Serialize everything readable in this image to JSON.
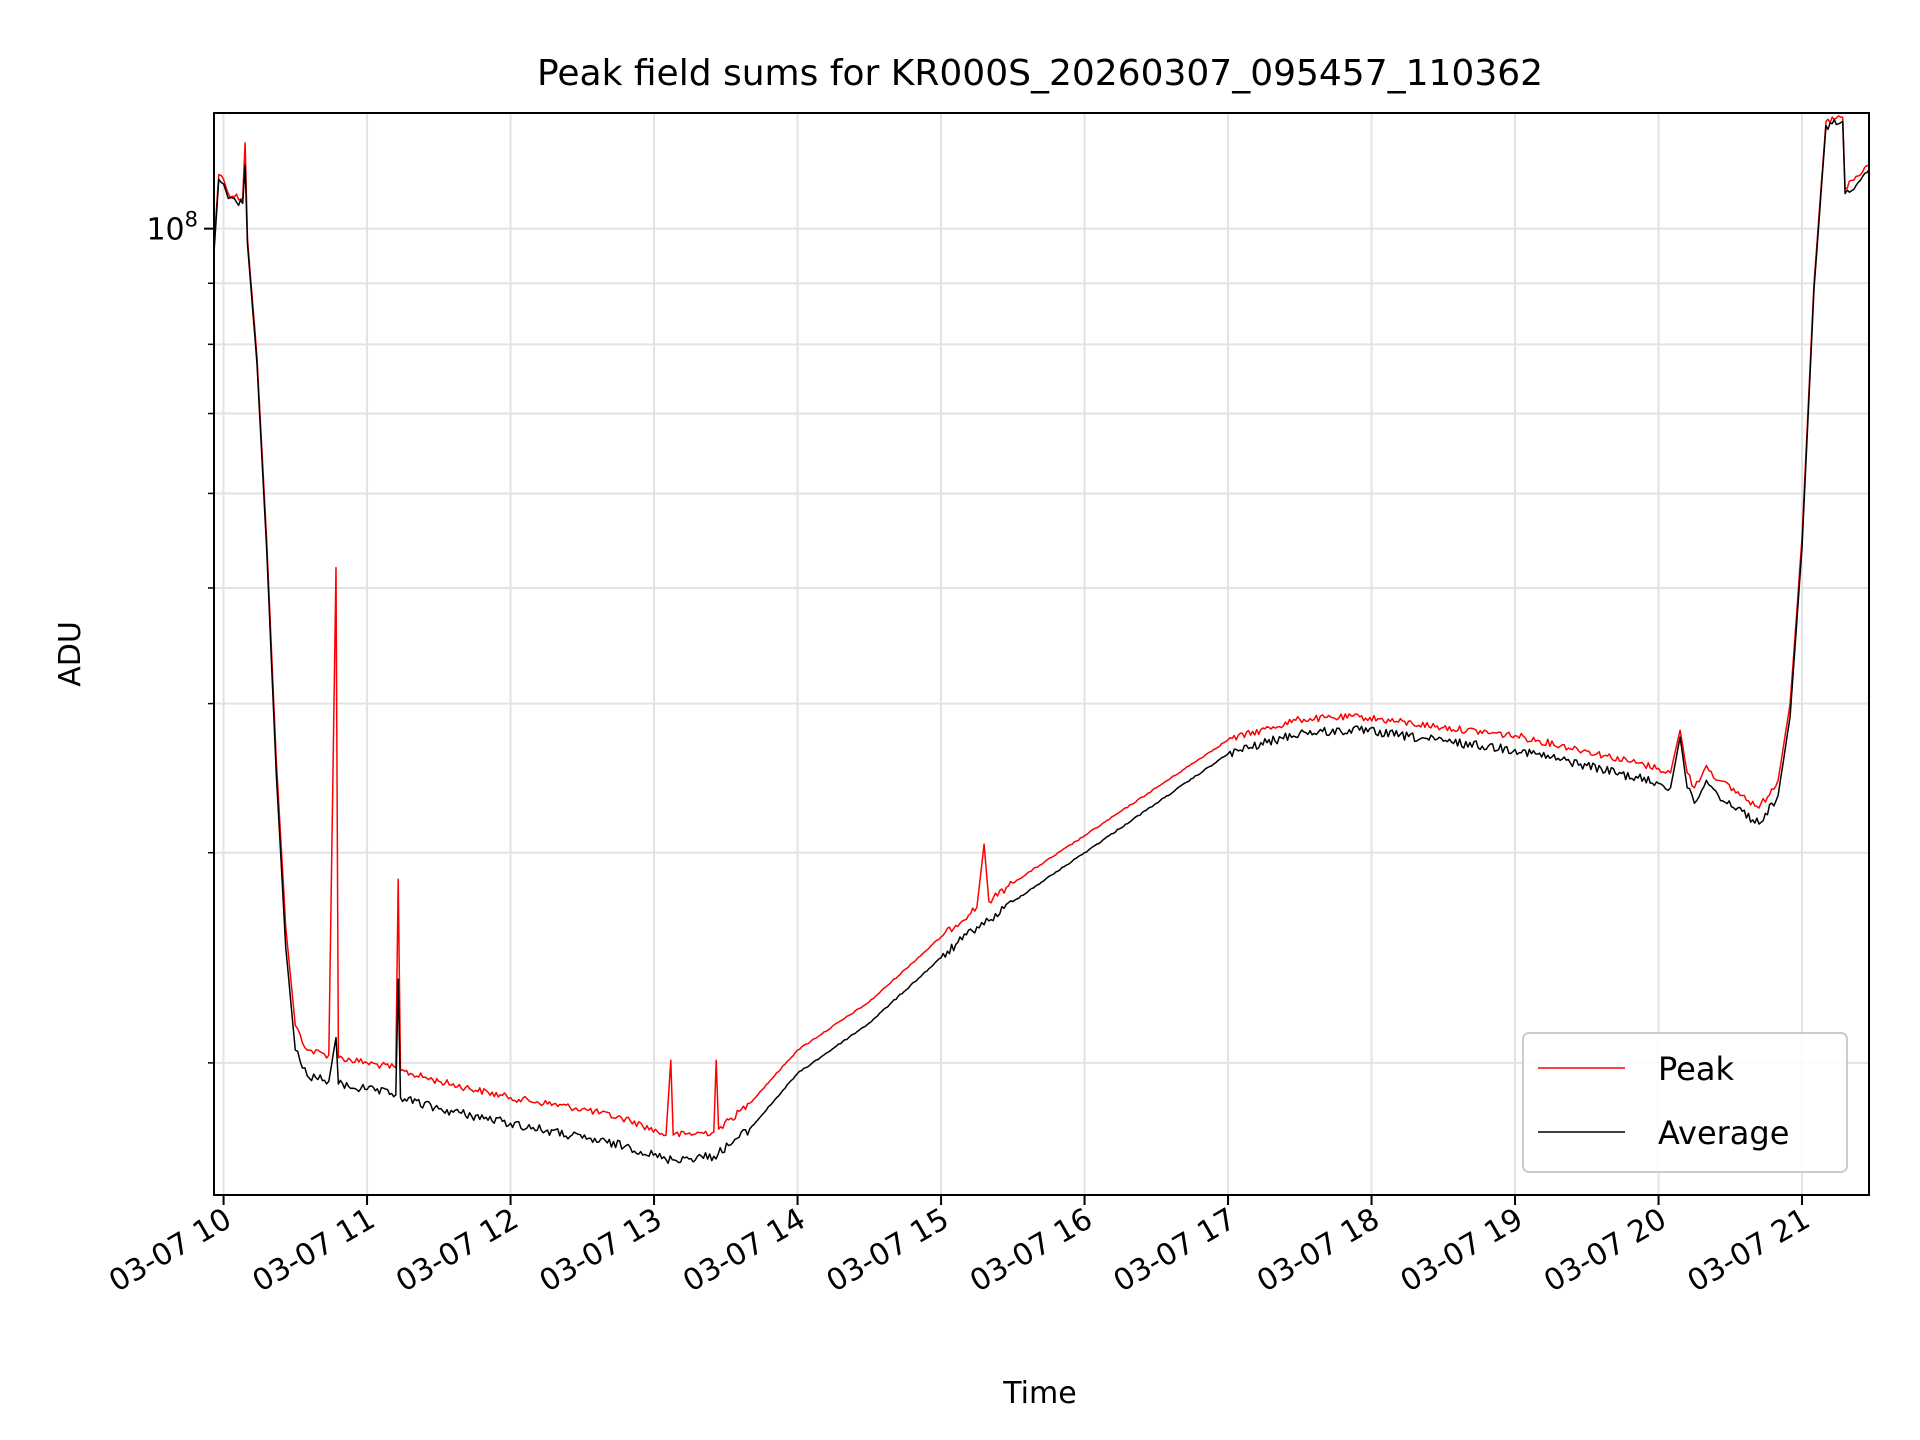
{
  "chart_data": {
    "type": "line",
    "title": "Peak field sums for KR000S_20260307_095457_110362",
    "xlabel": "Time",
    "ylabel": "ADU",
    "y_scale": "log",
    "y_tick_label": {
      "base": "10",
      "exponent": "8",
      "value": 100000000
    },
    "ylim": [
      15500000,
      125000000
    ],
    "xlim": [
      "2026-03-07 09:56",
      "2026-03-07 21:28"
    ],
    "x_tick_labels": [
      "03-07 10",
      "03-07 11",
      "03-07 12",
      "03-07 13",
      "03-07 14",
      "03-07 15",
      "03-07 16",
      "03-07 17",
      "03-07 18",
      "03-07 19",
      "03-07 20",
      "03-07 21"
    ],
    "x_ticks": [
      "2026-03-07 10:00",
      "2026-03-07 11:00",
      "2026-03-07 12:00",
      "2026-03-07 13:00",
      "2026-03-07 14:00",
      "2026-03-07 15:00",
      "2026-03-07 16:00",
      "2026-03-07 17:00",
      "2026-03-07 18:00",
      "2026-03-07 19:00",
      "2026-03-07 20:00",
      "2026-03-07 21:00"
    ],
    "grid": true,
    "legend": {
      "position": "lower-right"
    },
    "series": [
      {
        "name": "Peak",
        "color": "#ff0000",
        "points": [
          [
            "2026-03-07 09:56",
            97000000
          ],
          [
            "2026-03-07 09:58",
            111000000
          ],
          [
            "2026-03-07 10:00",
            110000000
          ],
          [
            "2026-03-07 10:02",
            107000000
          ],
          [
            "2026-03-07 10:08",
            106000000
          ],
          [
            "2026-03-07 10:09",
            118000000
          ],
          [
            "2026-03-07 10:10",
            98000000
          ],
          [
            "2026-03-07 10:14",
            78000000
          ],
          [
            "2026-03-07 10:18",
            55000000
          ],
          [
            "2026-03-07 10:22",
            36000000
          ],
          [
            "2026-03-07 10:26",
            26000000
          ],
          [
            "2026-03-07 10:30",
            21500000
          ],
          [
            "2026-03-07 10:35",
            20500000
          ],
          [
            "2026-03-07 10:44",
            20300000
          ],
          [
            "2026-03-07 10:47",
            52000000
          ],
          [
            "2026-03-07 10:48",
            20200000
          ],
          [
            "2026-03-07 11:00",
            20000000
          ],
          [
            "2026-03-07 11:12",
            19800000
          ],
          [
            "2026-03-07 11:13",
            28500000
          ],
          [
            "2026-03-07 11:14",
            19700000
          ],
          [
            "2026-03-07 11:30",
            19300000
          ],
          [
            "2026-03-07 12:00",
            18700000
          ],
          [
            "2026-03-07 12:30",
            18300000
          ],
          [
            "2026-03-07 12:50",
            17900000
          ],
          [
            "2026-03-07 13:05",
            17400000
          ],
          [
            "2026-03-07 13:07",
            20100000
          ],
          [
            "2026-03-07 13:08",
            17400000
          ],
          [
            "2026-03-07 13:25",
            17500000
          ],
          [
            "2026-03-07 13:26",
            20100000
          ],
          [
            "2026-03-07 13:27",
            17600000
          ],
          [
            "2026-03-07 13:40",
            18500000
          ],
          [
            "2026-03-07 14:00",
            20500000
          ],
          [
            "2026-03-07 14:30",
            22500000
          ],
          [
            "2026-03-07 15:00",
            25500000
          ],
          [
            "2026-03-07 15:15",
            27000000
          ],
          [
            "2026-03-07 15:18",
            30500000
          ],
          [
            "2026-03-07 15:20",
            27300000
          ],
          [
            "2026-03-07 15:30",
            28300000
          ],
          [
            "2026-03-07 16:00",
            31000000
          ],
          [
            "2026-03-07 16:30",
            34000000
          ],
          [
            "2026-03-07 17:00",
            37300000
          ],
          [
            "2026-03-07 17:30",
            38800000
          ],
          [
            "2026-03-07 17:55",
            39000000
          ],
          [
            "2026-03-07 18:30",
            38200000
          ],
          [
            "2026-03-07 19:00",
            37600000
          ],
          [
            "2026-03-07 19:30",
            36500000
          ],
          [
            "2026-03-07 20:00",
            35300000
          ],
          [
            "2026-03-07 20:05",
            35000000
          ],
          [
            "2026-03-07 20:09",
            38000000
          ],
          [
            "2026-03-07 20:12",
            35000000
          ],
          [
            "2026-03-07 20:15",
            34000000
          ],
          [
            "2026-03-07 20:20",
            35500000
          ],
          [
            "2026-03-07 20:25",
            34500000
          ],
          [
            "2026-03-07 20:35",
            33500000
          ],
          [
            "2026-03-07 20:42",
            32700000
          ],
          [
            "2026-03-07 20:50",
            34500000
          ],
          [
            "2026-03-07 20:55",
            40000000
          ],
          [
            "2026-03-07 21:00",
            55000000
          ],
          [
            "2026-03-07 21:05",
            90000000
          ],
          [
            "2026-03-07 21:10",
            123000000
          ],
          [
            "2026-03-07 21:17",
            124000000
          ],
          [
            "2026-03-07 21:18",
            108000000
          ],
          [
            "2026-03-07 21:28",
            113000000
          ]
        ]
      },
      {
        "name": "Average",
        "color": "#000000",
        "points": [
          [
            "2026-03-07 09:56",
            95500000
          ],
          [
            "2026-03-07 09:58",
            110000000
          ],
          [
            "2026-03-07 10:00",
            109000000
          ],
          [
            "2026-03-07 10:02",
            106000000
          ],
          [
            "2026-03-07 10:08",
            105000000
          ],
          [
            "2026-03-07 10:09",
            113000000
          ],
          [
            "2026-03-07 10:10",
            97000000
          ],
          [
            "2026-03-07 10:14",
            77000000
          ],
          [
            "2026-03-07 10:18",
            54000000
          ],
          [
            "2026-03-07 10:22",
            35000000
          ],
          [
            "2026-03-07 10:26",
            25000000
          ],
          [
            "2026-03-07 10:30",
            20500000
          ],
          [
            "2026-03-07 10:35",
            19500000
          ],
          [
            "2026-03-07 10:44",
            19300000
          ],
          [
            "2026-03-07 10:47",
            21000000
          ],
          [
            "2026-03-07 10:48",
            19200000
          ],
          [
            "2026-03-07 11:00",
            19000000
          ],
          [
            "2026-03-07 11:12",
            18800000
          ],
          [
            "2026-03-07 11:13",
            23500000
          ],
          [
            "2026-03-07 11:14",
            18700000
          ],
          [
            "2026-03-07 11:30",
            18300000
          ],
          [
            "2026-03-07 12:00",
            17800000
          ],
          [
            "2026-03-07 12:30",
            17300000
          ],
          [
            "2026-03-07 12:50",
            17000000
          ],
          [
            "2026-03-07 13:05",
            16600000
          ],
          [
            "2026-03-07 13:25",
            16700000
          ],
          [
            "2026-03-07 13:40",
            17600000
          ],
          [
            "2026-03-07 14:00",
            19600000
          ],
          [
            "2026-03-07 14:30",
            21600000
          ],
          [
            "2026-03-07 15:00",
            24500000
          ],
          [
            "2026-03-07 15:15",
            26000000
          ],
          [
            "2026-03-07 15:20",
            26300000
          ],
          [
            "2026-03-07 15:30",
            27300000
          ],
          [
            "2026-03-07 16:00",
            30000000
          ],
          [
            "2026-03-07 16:30",
            33000000
          ],
          [
            "2026-03-07 17:00",
            36300000
          ],
          [
            "2026-03-07 17:30",
            37800000
          ],
          [
            "2026-03-07 17:55",
            38000000
          ],
          [
            "2026-03-07 18:30",
            37200000
          ],
          [
            "2026-03-07 19:00",
            36600000
          ],
          [
            "2026-03-07 19:30",
            35500000
          ],
          [
            "2026-03-07 20:00",
            34300000
          ],
          [
            "2026-03-07 20:05",
            34000000
          ],
          [
            "2026-03-07 20:09",
            37500000
          ],
          [
            "2026-03-07 20:12",
            34000000
          ],
          [
            "2026-03-07 20:15",
            33000000
          ],
          [
            "2026-03-07 20:20",
            34500000
          ],
          [
            "2026-03-07 20:25",
            33500000
          ],
          [
            "2026-03-07 20:35",
            32500000
          ],
          [
            "2026-03-07 20:42",
            31700000
          ],
          [
            "2026-03-07 20:50",
            33500000
          ],
          [
            "2026-03-07 20:55",
            39000000
          ],
          [
            "2026-03-07 21:00",
            54000000
          ],
          [
            "2026-03-07 21:05",
            89000000
          ],
          [
            "2026-03-07 21:10",
            122000000
          ],
          [
            "2026-03-07 21:17",
            123000000
          ],
          [
            "2026-03-07 21:18",
            107000000
          ],
          [
            "2026-03-07 21:28",
            112000000
          ]
        ]
      }
    ]
  }
}
